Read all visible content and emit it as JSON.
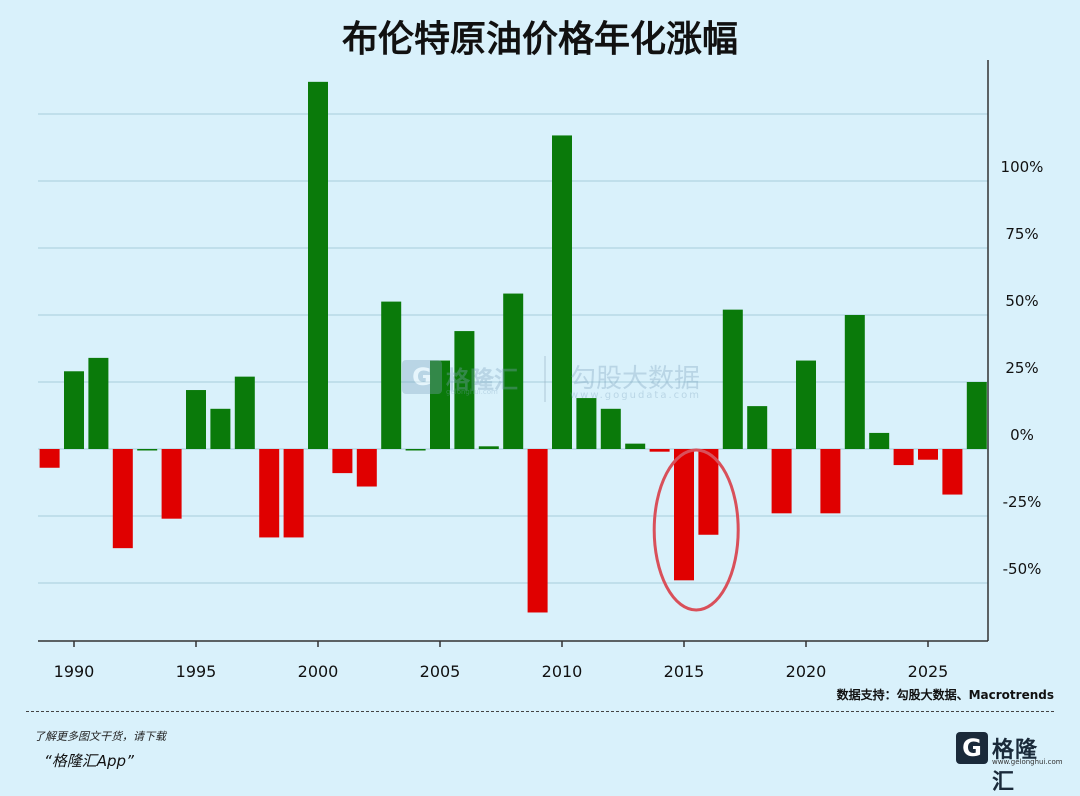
{
  "title": "布伦特原油价格年化涨幅",
  "source_text": "数据支持：勾股大数据、Macrotrends",
  "footer": {
    "line1": "了解更多图文干货，请下载",
    "line2": "“格隆汇App”"
  },
  "logo": {
    "text": "格隆汇",
    "url": "www.gelonghui.com"
  },
  "watermark": {
    "brand": "格隆汇",
    "brand_url": "gelonghui.com",
    "text": "勾股大数据",
    "url": "www.gogudata.com"
  },
  "colors": {
    "positive": "#0a7a0a",
    "negative": "#e00000",
    "highlight": "#d9505a",
    "grid": "#b8d9e6"
  },
  "chart_data": {
    "type": "bar",
    "title": "布伦特原油价格年化涨幅",
    "xlabel": "",
    "ylabel": "",
    "x": [
      1989,
      1990,
      1991,
      1992,
      1993,
      1994,
      1995,
      1996,
      1997,
      1998,
      1999,
      2000,
      2001,
      2002,
      2003,
      2004,
      2005,
      2006,
      2007,
      2008,
      2009,
      2010,
      2011,
      2012,
      2013,
      2014,
      2015,
      2016,
      2017,
      2018,
      2019,
      2020,
      2021,
      2022,
      2023,
      2024,
      2025,
      2026,
      2027
    ],
    "values": [
      -7,
      29,
      34,
      -37,
      0,
      -26,
      22,
      15,
      27,
      -33,
      -33,
      137,
      -9,
      -14,
      55,
      0,
      33,
      44,
      1,
      58,
      -61,
      117,
      19,
      15,
      2,
      -1,
      -49,
      -32,
      52,
      16,
      -24,
      33,
      -24,
      50,
      6,
      -6,
      -4,
      -17,
      25
    ],
    "x_ticks": [
      "1990",
      "1995",
      "2000",
      "2005",
      "2010",
      "2015",
      "2020",
      "2025"
    ],
    "x_tick_values": [
      1990,
      1995,
      2000,
      2005,
      2010,
      2015,
      2020,
      2025
    ],
    "y_ticks": [
      "-50%",
      "-25%",
      "0%",
      "25%",
      "50%",
      "75%",
      "100%"
    ],
    "y_tick_values": [
      -50,
      -25,
      0,
      25,
      50,
      75,
      100
    ],
    "ylim": [
      -72,
      140
    ],
    "y_axis_side": "right",
    "grid": true,
    "highlight": {
      "shape": "ellipse",
      "years": [
        2015,
        2016
      ]
    }
  }
}
